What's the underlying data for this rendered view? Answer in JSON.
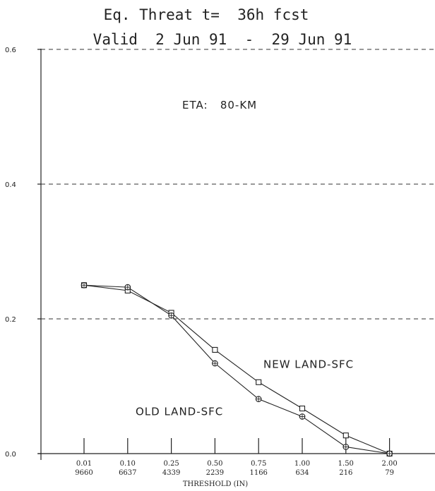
{
  "chart_data": {
    "type": "line",
    "title": "Eq. Threat t=  36h fcst",
    "subtitle": "Valid  2 Jun 91  -  29 Jun 91",
    "annotation": "ETA:   80-KM",
    "xlabel": "THRESHOLD (IN)",
    "ylabel": "",
    "ylim": [
      0.0,
      0.6
    ],
    "yticks": [
      "0.0",
      "0.2",
      "0.4",
      "0.6"
    ],
    "grid": "dashed horizontal at 0.2, 0.4, 0.6",
    "categories": [
      "0.01",
      "0.10",
      "0.25",
      "0.50",
      "0.75",
      "1.00",
      "1.50",
      "2.00"
    ],
    "counts": [
      "9660",
      "6637",
      "4339",
      "2239",
      "1166",
      "634",
      "216",
      "79"
    ],
    "series": [
      {
        "name": "NEW LAND-SFC",
        "marker": "square",
        "values": [
          0.25,
          0.242,
          0.209,
          0.154,
          0.106,
          0.067,
          0.027,
          0.0
        ],
        "label_at": 0.127
      },
      {
        "name": "OLD LAND-SFC",
        "marker": "circle-cross",
        "values": [
          0.25,
          0.247,
          0.205,
          0.134,
          0.081,
          0.055,
          0.01,
          0.0
        ],
        "label_at": 0.057
      }
    ]
  }
}
